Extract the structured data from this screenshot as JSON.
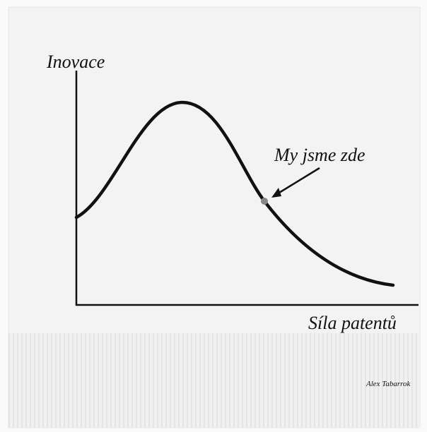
{
  "axes": {
    "y_label": "Inovace",
    "x_label": "Síla patentů"
  },
  "annotation": "My jsme zde",
  "signature": "Alex Tabarrok"
}
